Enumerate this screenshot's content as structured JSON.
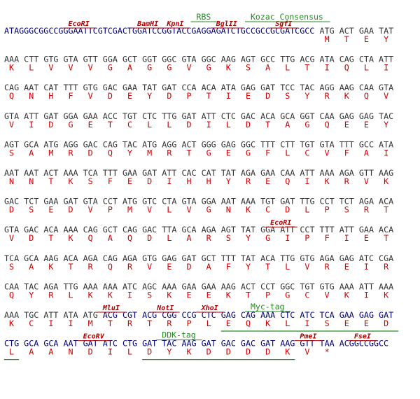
{
  "header_sequence": "ATAGGGCGGCCGGGAATTCGTCGACTGGATCCGGTACCGAGGAGATCTGCCGCCGCGATCGCC",
  "rows": [
    {
      "codons": [
        "ATG",
        "ACT",
        "GAA",
        "TAT"
      ],
      "aa": [
        "M",
        "T",
        "E",
        "Y"
      ]
    },
    {
      "codons": [
        "AAA",
        "CTT",
        "GTG",
        "GTA",
        "GTT",
        "GGA",
        "GCT",
        "GGT",
        "GGC",
        "GTA",
        "GGC",
        "AAG",
        "AGT",
        "GCC",
        "TTG",
        "ACG",
        "ATA",
        "CAG",
        "CTA",
        "ATT"
      ],
      "aa": [
        "K",
        "L",
        "V",
        "V",
        "V",
        "G",
        "A",
        "G",
        "G",
        "V",
        "G",
        "K",
        "S",
        "A",
        "L",
        "T",
        "I",
        "Q",
        "L",
        "I"
      ]
    },
    {
      "codons": [
        "CAG",
        "AAT",
        "CAT",
        "TTT",
        "GTG",
        "GAC",
        "GAA",
        "TAT",
        "GAT",
        "CCA",
        "ACA",
        "ATA",
        "GAG",
        "GAT",
        "TCC",
        "TAC",
        "AGG",
        "AAG",
        "CAA",
        "GTA"
      ],
      "aa": [
        "Q",
        "N",
        "H",
        "F",
        "V",
        "D",
        "E",
        "Y",
        "D",
        "P",
        "T",
        "I",
        "E",
        "D",
        "S",
        "Y",
        "R",
        "K",
        "Q",
        "V"
      ]
    },
    {
      "codons": [
        "GTA",
        "ATT",
        "GAT",
        "GGA",
        "GAA",
        "ACC",
        "TGT",
        "CTC",
        "TTG",
        "GAT",
        "ATT",
        "CTC",
        "GAC",
        "ACA",
        "GCA",
        "GGT",
        "CAA",
        "GAG",
        "GAG",
        "TAC"
      ],
      "aa": [
        "V",
        "I",
        "D",
        "G",
        "E",
        "T",
        "C",
        "L",
        "L",
        "D",
        "I",
        "L",
        "D",
        "T",
        "A",
        "G",
        "Q",
        "E",
        "E",
        "Y"
      ]
    },
    {
      "codons": [
        "AGT",
        "GCA",
        "ATG",
        "AGG",
        "GAC",
        "CAG",
        "TAC",
        "ATG",
        "AGG",
        "ACT",
        "GGG",
        "GAG",
        "GGC",
        "TTT",
        "CTT",
        "TGT",
        "GTA",
        "TTT",
        "GCC",
        "ATA"
      ],
      "aa": [
        "S",
        "A",
        "M",
        "R",
        "D",
        "Q",
        "Y",
        "M",
        "R",
        "T",
        "G",
        "E",
        "G",
        "F",
        "L",
        "C",
        "V",
        "F",
        "A",
        "I"
      ]
    },
    {
      "codons": [
        "AAT",
        "AAT",
        "ACT",
        "AAA",
        "TCA",
        "TTT",
        "GAA",
        "GAT",
        "ATT",
        "CAC",
        "CAT",
        "TAT",
        "AGA",
        "GAA",
        "CAA",
        "ATT",
        "AAA",
        "AGA",
        "GTT",
        "AAG"
      ],
      "aa": [
        "N",
        "N",
        "T",
        "K",
        "S",
        "F",
        "E",
        "D",
        "I",
        "H",
        "H",
        "Y",
        "R",
        "E",
        "Q",
        "I",
        "K",
        "R",
        "V",
        "K"
      ]
    },
    {
      "codons": [
        "GAC",
        "TCT",
        "GAA",
        "GAT",
        "GTA",
        "CCT",
        "ATG",
        "GTC",
        "CTA",
        "GTA",
        "GGA",
        "AAT",
        "AAA",
        "TGT",
        "GAT",
        "TTG",
        "CCT",
        "TCT",
        "AGA",
        "ACA"
      ],
      "aa": [
        "D",
        "S",
        "E",
        "D",
        "V",
        "P",
        "M",
        "V",
        "L",
        "V",
        "G",
        "N",
        "K",
        "C",
        "D",
        "L",
        "P",
        "S",
        "R",
        "T"
      ]
    },
    {
      "codons": [
        "GTA",
        "GAC",
        "ACA",
        "AAA",
        "CAG",
        "GCT",
        "CAG",
        "GAC",
        "TTA",
        "GCA",
        "AGA",
        "AGT",
        "TAT",
        "GGA",
        "ATT",
        "CCT",
        "TTT",
        "ATT",
        "GAA",
        "ACA"
      ],
      "aa": [
        "V",
        "D",
        "T",
        "K",
        "Q",
        "A",
        "Q",
        "D",
        "L",
        "A",
        "R",
        "S",
        "Y",
        "G",
        "I",
        "P",
        "F",
        "I",
        "E",
        "T"
      ]
    },
    {
      "codons": [
        "TCA",
        "GCA",
        "AAG",
        "ACA",
        "AGA",
        "CAG",
        "AGA",
        "GTG",
        "GAG",
        "GAT",
        "GCT",
        "TTT",
        "TAT",
        "ACA",
        "TTG",
        "GTG",
        "AGA",
        "GAG",
        "ATC",
        "CGA"
      ],
      "aa": [
        "S",
        "A",
        "K",
        "T",
        "R",
        "Q",
        "R",
        "V",
        "E",
        "D",
        "A",
        "F",
        "Y",
        "T",
        "L",
        "V",
        "R",
        "E",
        "I",
        "R"
      ]
    },
    {
      "codons": [
        "CAA",
        "TAC",
        "AGA",
        "TTG",
        "AAA",
        "AAA",
        "ATC",
        "AGC",
        "AAA",
        "GAA",
        "GAA",
        "AAG",
        "ACT",
        "CCT",
        "GGC",
        "TGT",
        "GTG",
        "AAA",
        "ATT",
        "AAA"
      ],
      "aa": [
        "Q",
        "Y",
        "R",
        "L",
        "K",
        "K",
        "I",
        "S",
        "K",
        "E",
        "E",
        "K",
        "T",
        "P",
        "G",
        "C",
        "V",
        "K",
        "I",
        "K"
      ]
    },
    {
      "codons": [
        "AAA",
        "TGC",
        "ATT",
        "ATA",
        "ATG",
        "ACG",
        "CGT",
        "ACG",
        "CGG",
        "CCG",
        "CTC",
        "GAG",
        "CAG",
        "AAA",
        "CTC",
        "ATC",
        "TCA",
        "GAA",
        "GAG",
        "GAT"
      ],
      "aa": [
        "K",
        "C",
        "I",
        "I",
        "M",
        "T",
        "R",
        "T",
        "R",
        "P",
        "L",
        "E",
        "Q",
        "K",
        "L",
        "I",
        "S",
        "E",
        "E",
        "D"
      ]
    },
    {
      "codons": [
        "CTG",
        "GCA",
        "GCA",
        "AAT",
        "GAT",
        "ATC",
        "CTG",
        "GAT",
        "TAC",
        "AAG",
        "GAT",
        "GAC",
        "GAC",
        "GAT",
        "AAG",
        "GTT",
        "TAA"
      ],
      "aa": [
        "L",
        "A",
        "A",
        "N",
        "D",
        "I",
        "L",
        "D",
        "Y",
        "K",
        "D",
        "D",
        "D",
        "D",
        "K",
        "V",
        "*"
      ]
    }
  ],
  "tail_sequence": "ACGGCCGGCC",
  "annotations": [
    {
      "label": "EcoRI",
      "kind": "enzyme"
    },
    {
      "label": "BamHI",
      "kind": "enzyme"
    },
    {
      "label": "KpnI",
      "kind": "enzyme"
    },
    {
      "label": "BglII",
      "kind": "enzyme"
    },
    {
      "label": "SgfI",
      "kind": "enzyme"
    },
    {
      "label": "RBS",
      "kind": "feature"
    },
    {
      "label": "Kozac Consensus",
      "kind": "feature"
    },
    {
      "label": "EcoRI",
      "kind": "enzyme"
    },
    {
      "label": "MluI",
      "kind": "enzyme"
    },
    {
      "label": "NotI",
      "kind": "enzyme"
    },
    {
      "label": "XhoI",
      "kind": "enzyme"
    },
    {
      "label": "Myc-tag",
      "kind": "feature"
    },
    {
      "label": "EcoRV",
      "kind": "enzyme"
    },
    {
      "label": "DDK-tag",
      "kind": "feature"
    },
    {
      "label": "PmeI",
      "kind": "enzyme"
    },
    {
      "label": "FseI",
      "kind": "enzyme"
    }
  ]
}
